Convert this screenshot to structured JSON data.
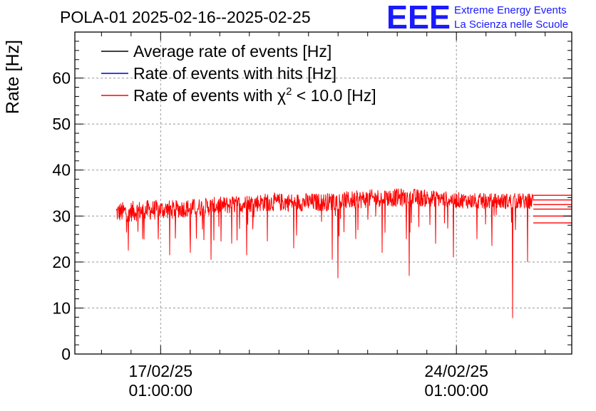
{
  "chart_data": {
    "type": "line",
    "title": "POLA-01 2025-02-16--2025-02-25",
    "xlabel": "",
    "ylabel": "Rate [Hz]",
    "ylim": [
      0,
      70
    ],
    "yticks": [
      0,
      10,
      20,
      30,
      40,
      50,
      60
    ],
    "x_range_days": [
      -2.9,
      13.9
    ],
    "xticks": [
      {
        "day": 0,
        "date": "17/02/25",
        "time": "01:00:00"
      },
      {
        "day": 10,
        "date": "24/02/25",
        "time": "01:00:00"
      }
    ],
    "grid": true,
    "legend_position": "top-left",
    "legend": [
      {
        "label": "Average rate of events [Hz]",
        "color": "#000000"
      },
      {
        "label": "Rate of events with hits [Hz]",
        "color": "#0000cc"
      },
      {
        "label_prefix": "Rate of events with ",
        "label_symbol": "χ",
        "label_sup": "2",
        "label_suffix": " < 10.0 [Hz]",
        "color": "#ff0000"
      }
    ],
    "series": [
      {
        "name": "Rate of events with chi2 < 10.0 [Hz]",
        "color": "#ff0000",
        "x_start_day": -1.5,
        "x_end_day": 12.6,
        "x": [
          -1.5,
          -0.5,
          0.5,
          1.5,
          2.5,
          3.5,
          4.5,
          5.5,
          6.5,
          7.5,
          8.5,
          9.5,
          10.5,
          11.5,
          12.5
        ],
        "y_band_low": [
          28.5,
          29.0,
          29.5,
          30.0,
          30.5,
          31.0,
          31.0,
          31.0,
          31.5,
          32.0,
          32.0,
          32.0,
          31.5,
          31.5,
          31.5
        ],
        "y_band_high": [
          33.0,
          33.5,
          33.5,
          34.0,
          34.5,
          35.0,
          35.0,
          35.0,
          35.5,
          36.0,
          36.0,
          35.5,
          35.0,
          35.0,
          35.0
        ],
        "dips": [
          {
            "day": -1.1,
            "value": 22.5
          },
          {
            "day": -0.6,
            "value": 25.0
          },
          {
            "day": 0.3,
            "value": 21.5
          },
          {
            "day": 1.0,
            "value": 22.0
          },
          {
            "day": 1.7,
            "value": 20.5
          },
          {
            "day": 2.4,
            "value": 24.0
          },
          {
            "day": 2.9,
            "value": 21.5
          },
          {
            "day": 3.6,
            "value": 24.5
          },
          {
            "day": 4.5,
            "value": 23.0
          },
          {
            "day": 5.8,
            "value": 20.5
          },
          {
            "day": 6.0,
            "value": 16.5
          },
          {
            "day": 6.6,
            "value": 25.0
          },
          {
            "day": 7.5,
            "value": 22.0
          },
          {
            "day": 8.3,
            "value": 25.0
          },
          {
            "day": 8.4,
            "value": 17.0
          },
          {
            "day": 9.3,
            "value": 24.0
          },
          {
            "day": 9.9,
            "value": 21.0
          },
          {
            "day": 10.7,
            "value": 25.0
          },
          {
            "day": 11.2,
            "value": 23.5
          },
          {
            "day": 11.9,
            "value": 7.8
          },
          {
            "day": 12.4,
            "value": 20.0
          }
        ],
        "tail_levels": [
          34.5,
          33.5,
          32.5,
          31.5,
          30.0,
          28.5
        ]
      }
    ]
  },
  "logo": {
    "letters": "EEE",
    "line1": "Extreme Energy Events",
    "line2": "La Scienza nelle Scuole",
    "color": "#1a1aff"
  }
}
